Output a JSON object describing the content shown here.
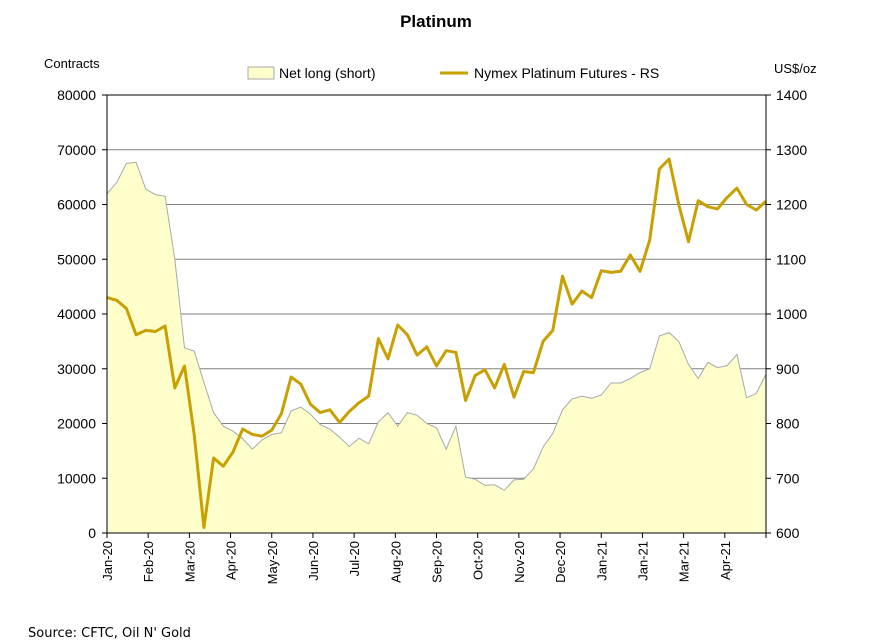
{
  "chart_data": {
    "type": "area+line",
    "title": "Platinum",
    "ylabel_left": "Contracts",
    "ylabel_right": "US$/oz",
    "ylim_left": [
      0,
      80000
    ],
    "ylim_right": [
      600,
      1400
    ],
    "yticks_left": [
      "0",
      "10000",
      "20000",
      "30000",
      "40000",
      "50000",
      "60000",
      "70000",
      "80000"
    ],
    "yticks_right": [
      "600",
      "700",
      "800",
      "900",
      "1000",
      "1100",
      "1200",
      "1300",
      "1400"
    ],
    "xticks": [
      "Jan-20",
      "Feb-20",
      "Mar-20",
      "Apr-20",
      "May-20",
      "Jun-20",
      "Jul-20",
      "Aug-20",
      "Sep-20",
      "Oct-20",
      "Nov-20",
      "Dec-20",
      "Jan-21",
      "Jan-21",
      "Mar-21",
      "Apr-21"
    ],
    "grid": true,
    "legend_position": "top",
    "source": "Source: CFTC, Oil N' Gold",
    "series": [
      {
        "name": "Net long (short)",
        "type": "area",
        "axis": "left",
        "fill": "#ffffcc",
        "stroke": "#a8a8a8",
        "values": [
          62000,
          64000,
          67500,
          67700,
          62800,
          61800,
          61500,
          50000,
          33800,
          33200,
          27500,
          22000,
          19500,
          18600,
          17200,
          15300,
          17000,
          18000,
          18300,
          22300,
          23000,
          21700,
          19800,
          19000,
          17500,
          15800,
          17300,
          16300,
          20300,
          22000,
          19500,
          22000,
          21500,
          20000,
          19200,
          15300,
          19500,
          10200,
          9800,
          8700,
          8800,
          7800,
          9700,
          9800,
          11700,
          15700,
          18200,
          22500,
          24500,
          25000,
          24600,
          25200,
          27400,
          27400,
          28200,
          29300,
          30000,
          36000,
          36600,
          35000,
          30800,
          28200,
          31200,
          30200,
          30600,
          32600,
          24700,
          25500,
          29000
        ]
      },
      {
        "name": "Nymex Platinum Futures - RS",
        "type": "line",
        "axis": "right",
        "color": "#c8a000",
        "values": [
          1030,
          1025,
          1010,
          962,
          970,
          968,
          978,
          865,
          905,
          780,
          610,
          737,
          722,
          748,
          790,
          780,
          777,
          788,
          818,
          885,
          872,
          835,
          820,
          825,
          802,
          822,
          838,
          850,
          955,
          918,
          980,
          962,
          925,
          940,
          905,
          933,
          930,
          842,
          888,
          898,
          865,
          908,
          848,
          895,
          893,
          950,
          970,
          1069,
          1018,
          1042,
          1030,
          1079,
          1076,
          1078,
          1108,
          1078,
          1135,
          1265,
          1283,
          1200,
          1132,
          1207,
          1196,
          1192,
          1213,
          1230,
          1200,
          1190,
          1206
        ]
      }
    ]
  }
}
